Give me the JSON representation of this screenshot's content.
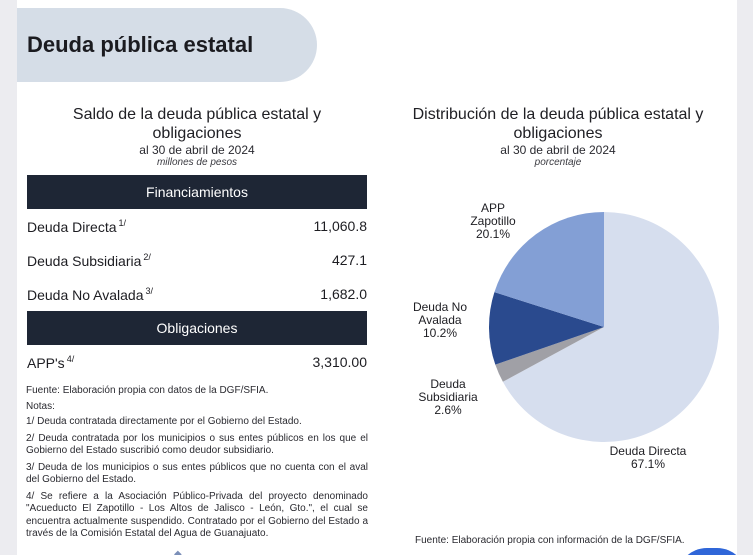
{
  "header": {
    "title": "Deuda pública estatal"
  },
  "left_panel": {
    "title_line1": "Saldo de la deuda pública estatal y",
    "title_line2": "obligaciones",
    "date": "al  30 de abril de 2024",
    "unit": "millones de pesos",
    "section1": "Financiamientos",
    "rows1": [
      {
        "label": "Deuda Directa",
        "note": "1/",
        "value": "11,060.8"
      },
      {
        "label": "Deuda Subsidiaria",
        "note": "2/",
        "value": "427.1"
      },
      {
        "label": "Deuda No Avalada",
        "note": "3/",
        "value": "1,682.0"
      }
    ],
    "section2": "Obligaciones",
    "rows2": [
      {
        "label": "APP's",
        "note": "4/",
        "value": "3,310.00"
      }
    ],
    "source": "Fuente: Elaboración propia con datos de la DGF/SFIA.",
    "notes_title": "Notas:",
    "notes": [
      "1/ Deuda contratada directamente por el Gobierno del Estado.",
      "2/ Deuda contratada por los municipios o sus entes públicos en los que el Gobierno del Estado suscribió como deudor subsidiario.",
      "3/ Deuda de los municipios o sus entes públicos que no cuenta con el aval del Gobierno del Estado.",
      "4/ Se refiere a la Asociación Público-Privada del proyecto denominado \"Acueducto El Zapotillo - Los Altos de Jalisco - León, Gto.\", el cual se encuentra actualmente suspendido. Contratado por el Gobierno del Estado a través de la Comisión Estatal del Agua de Guanajuato."
    ]
  },
  "right_panel": {
    "date": "al  30 de abril de 2024",
    "unit": "porcentaje",
    "source": "Fuente: Elaboración propia con información de la DGF/SFIA."
  },
  "chart_data": {
    "type": "pie",
    "title": "Distribución de la deuda pública estatal y obligaciones",
    "title_line1": "Distribución de la deuda pública estatal y",
    "title_line2": "obligaciones",
    "categories": [
      "Deuda Directa",
      "Deuda Subsidiaria",
      "Deuda No Avalada",
      "APP Zapotillo"
    ],
    "values": [
      67.1,
      2.6,
      10.2,
      20.1
    ],
    "value_labels": [
      "67.1%",
      "2.6%",
      "10.2%",
      "20.1%"
    ],
    "label_lines": [
      [
        "Deuda Directa"
      ],
      [
        "Deuda",
        "Subsidiaria"
      ],
      [
        "Deuda No",
        "Avalada"
      ],
      [
        "APP",
        "Zapotillo"
      ]
    ],
    "colors": [
      "#d6deee",
      "#a0a0a6",
      "#2a4a8e",
      "#839fd5"
    ],
    "start_angle_deg": 90,
    "direction": "clockwise",
    "legend": "none"
  }
}
